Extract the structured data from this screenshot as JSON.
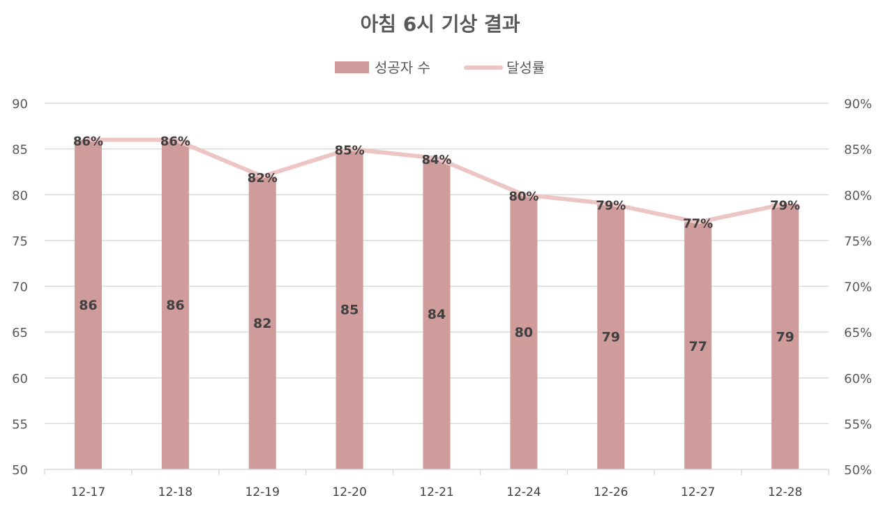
{
  "chart_data": {
    "type": "bar",
    "title": "아침 6시 기상 결과",
    "legend_position": "top",
    "grid": true,
    "categories": [
      "12-17",
      "12-18",
      "12-19",
      "12-20",
      "12-21",
      "12-24",
      "12-26",
      "12-27",
      "12-28"
    ],
    "series": [
      {
        "name": "성공자 수",
        "type": "bar",
        "axis": "left",
        "color": "#d09b9b",
        "values": [
          86,
          86,
          82,
          85,
          84,
          80,
          79,
          77,
          79
        ],
        "labels": [
          "86",
          "86",
          "82",
          "85",
          "84",
          "80",
          "79",
          "77",
          "79"
        ]
      },
      {
        "name": "달성률",
        "type": "line",
        "axis": "right",
        "color": "#eec5c5",
        "values": [
          86,
          86,
          82,
          85,
          84,
          80,
          79,
          77,
          79
        ],
        "labels": [
          "86%",
          "86%",
          "82%",
          "85%",
          "84%",
          "80%",
          "79%",
          "77%",
          "79%"
        ]
      }
    ],
    "y_left": {
      "min": 50,
      "max": 90,
      "ticks": [
        "50",
        "55",
        "60",
        "65",
        "70",
        "75",
        "80",
        "85",
        "90"
      ]
    },
    "y_right": {
      "min": 50,
      "max": 90,
      "ticks": [
        "50%",
        "55%",
        "60%",
        "65%",
        "70%",
        "75%",
        "80%",
        "85%",
        "90%"
      ]
    },
    "gridline_color": "#d9d9d9"
  }
}
